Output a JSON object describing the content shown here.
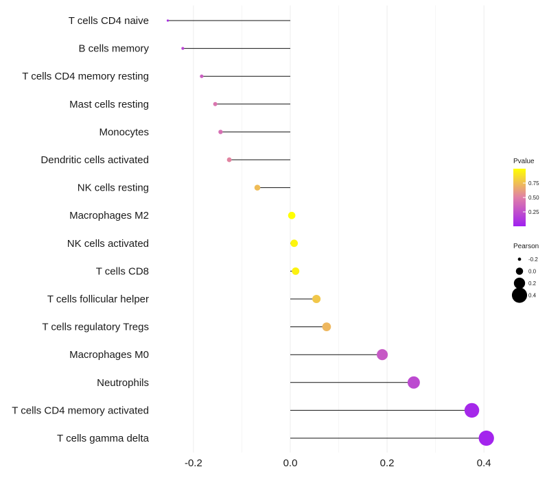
{
  "chart_data": {
    "type": "lollipop",
    "title": "",
    "xlabel": "",
    "ylabel": "",
    "xlim": [
      -0.28,
      0.42
    ],
    "x_ticks": [
      -0.2,
      0.0,
      0.2,
      0.4
    ],
    "x_tick_labels": [
      "-0.2",
      "0.0",
      "0.2",
      "0.4"
    ],
    "grid": "vertical",
    "categories": [
      "T cells CD4 naive",
      "B cells memory",
      "T cells CD4 memory resting",
      "Mast cells resting",
      "Monocytes",
      "Dendritic cells activated",
      "NK cells resting",
      "Macrophages M2",
      "NK cells activated",
      "T cells CD8",
      "T cells follicular helper",
      "T cells regulatory  Tregs",
      "Macrophages M0",
      "Neutrophils",
      "T cells CD4 memory activated",
      "T cells gamma delta"
    ],
    "pearson": [
      -0.253,
      -0.222,
      -0.183,
      -0.155,
      -0.144,
      -0.126,
      -0.068,
      0.003,
      0.008,
      0.011,
      0.054,
      0.075,
      0.19,
      0.255,
      0.375,
      0.405
    ],
    "pvalue": [
      0.08,
      0.2,
      0.33,
      0.45,
      0.42,
      0.52,
      0.74,
      1.0,
      0.96,
      0.95,
      0.78,
      0.72,
      0.3,
      0.22,
      0.04,
      0.02
    ],
    "legend": {
      "color": {
        "title": "Pvalue",
        "ticks": [
          0.25,
          0.5,
          0.75
        ],
        "tick_labels": [
          "0.25",
          "0.50",
          "0.75"
        ],
        "range": [
          0.0,
          1.0
        ],
        "low_color": "#a020f0",
        "mid_color": "#e07fa8",
        "high_color": "#ffff00"
      },
      "size": {
        "title": "Pearson",
        "values": [
          -0.2,
          0.0,
          0.2,
          0.4
        ],
        "labels": [
          "-0.2",
          "0.0",
          "0.2",
          "0.4"
        ]
      }
    }
  }
}
